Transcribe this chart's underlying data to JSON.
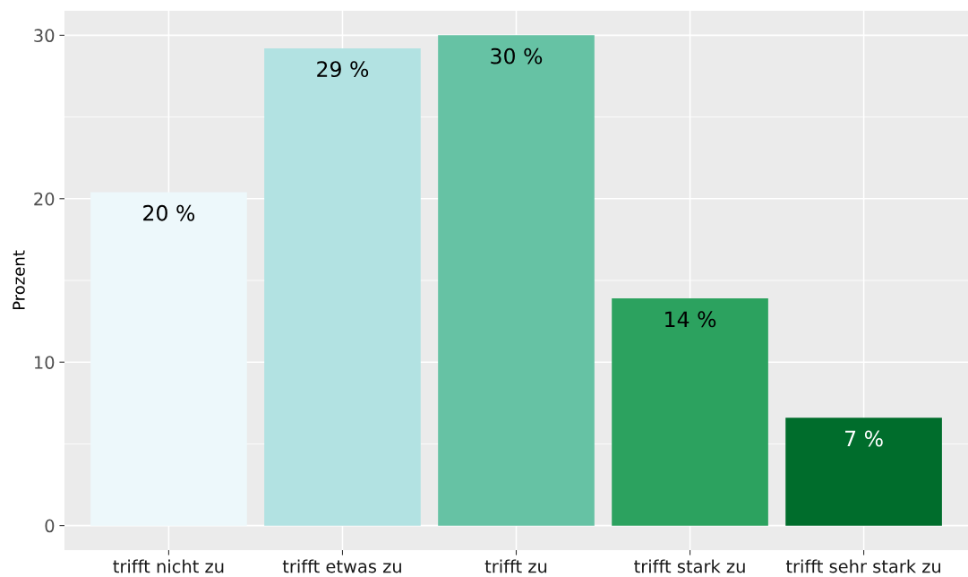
{
  "chart_data": {
    "type": "bar",
    "ylabel": "Prozent",
    "categories": [
      "trifft nicht zu",
      "trifft etwas zu",
      "trifft zu",
      "trifft stark zu",
      "trifft sehr stark zu"
    ],
    "values": [
      20.4,
      29.2,
      30.0,
      13.9,
      6.6
    ],
    "colors": [
      "#edf8fb",
      "#b2e2e2",
      "#66c2a4",
      "#2ca25f",
      "#006d2c"
    ],
    "value_labels": [
      "20 %",
      "29 %",
      "30 %",
      "14 %",
      "7 %"
    ],
    "ylim": [
      -1.5,
      31.5
    ],
    "yticks": [
      0,
      10,
      20,
      30
    ],
    "grid": true
  }
}
